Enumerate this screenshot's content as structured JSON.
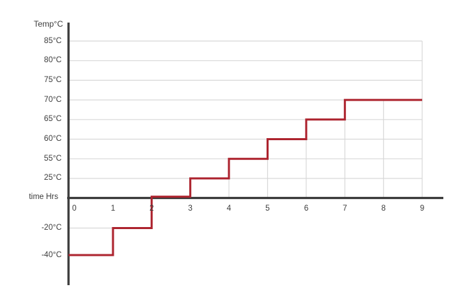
{
  "chart_data": {
    "type": "step",
    "title": "",
    "ylabel": "Temp°C",
    "xlabel": "time Hrs",
    "x_ticks": [
      "0",
      "1",
      "2",
      "3",
      "4",
      "5",
      "6",
      "7",
      "8",
      "9"
    ],
    "y_ticks": [
      {
        "value": 85,
        "label": "85°C"
      },
      {
        "value": 80,
        "label": "80°C"
      },
      {
        "value": 75,
        "label": "75°C"
      },
      {
        "value": 70,
        "label": "70°C"
      },
      {
        "value": 65,
        "label": "65°C"
      },
      {
        "value": 60,
        "label": "60°C"
      },
      {
        "value": 55,
        "label": "55°C"
      },
      {
        "value": 25,
        "label": "25°C"
      },
      {
        "value": -20,
        "label": "-20°C"
      },
      {
        "value": -40,
        "label": "-40°C"
      }
    ],
    "xlim": [
      0,
      9
    ],
    "steps": [
      {
        "hour_start": 0,
        "hour_end": 1,
        "temp": -40
      },
      {
        "hour_start": 1,
        "hour_end": 2,
        "temp": -20
      },
      {
        "hour_start": 2,
        "hour_end": 3,
        "temp": 0
      },
      {
        "hour_start": 3,
        "hour_end": 4,
        "temp": 25
      },
      {
        "hour_start": 4,
        "hour_end": 5,
        "temp": 55
      },
      {
        "hour_start": 5,
        "hour_end": 6,
        "temp": 60
      },
      {
        "hour_start": 6,
        "hour_end": 7,
        "temp": 65
      },
      {
        "hour_start": 7,
        "hour_end": 9,
        "temp": 70
      }
    ],
    "grid": {
      "horizontal_full": [
        85,
        80,
        75,
        70,
        65,
        60,
        55,
        25
      ],
      "horizontal_partial": [
        {
          "value": -20,
          "hour_start": 0,
          "hour_end": 1
        }
      ],
      "vertical_drops": [
        {
          "hour": 4,
          "top_temp": 25
        },
        {
          "hour": 5,
          "top_temp": 55
        },
        {
          "hour": 6,
          "top_temp": 60
        },
        {
          "hour": 7,
          "top_temp": 65
        },
        {
          "hour": 8,
          "top_temp": 70
        },
        {
          "hour": 9,
          "top_temp": 85
        }
      ]
    },
    "colors": {
      "line": "#ad242f",
      "axis": "#3a3a3a",
      "grid": "#d8d8d8",
      "text": "#3d3d3d"
    }
  }
}
